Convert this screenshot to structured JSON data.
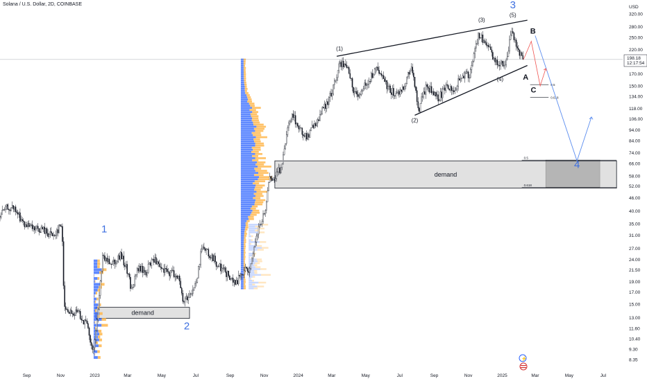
{
  "header": {
    "title": "Solana / U.S. Dollar, 2D, COINBASE",
    "currency": "USD"
  },
  "price_tag": {
    "price": "198.18",
    "countdown": "12:17:54"
  },
  "chart_data": {
    "type": "candlestick",
    "title": "Solana / U.S. Dollar, 2D, COINBASE",
    "y_scale": "log",
    "ylim": [
      7.6,
      345
    ],
    "y_ticks": [
      8.35,
      9.3,
      10.4,
      11.6,
      13.0,
      15.0,
      17.0,
      19.0,
      21.5,
      24.0,
      27.0,
      31.0,
      35.0,
      40.0,
      46.0,
      52.0,
      58.0,
      66.0,
      74.0,
      84.0,
      94.0,
      106.0,
      118.0,
      134.0,
      150.0,
      170.0,
      190.0,
      220.0,
      250.0,
      280.0,
      320.0
    ],
    "y_tick_labels": [
      "8.35",
      "9.30",
      "10.40",
      "11.60",
      "13.00",
      "15.00",
      "17.00",
      "19.00",
      "21.50",
      "24.00",
      "27.00",
      "31.00",
      "35.00",
      "40.00",
      "46.00",
      "52.00",
      "58.00",
      "66.00",
      "74.00",
      "84.00",
      "94.00",
      "106.00",
      "118.00",
      "134.00",
      "150.00",
      "170.00",
      "190.00",
      "220.00",
      "250.00",
      "280.00",
      "320.00"
    ],
    "x_labels": [
      {
        "label": "Sep",
        "date": "2022-09-01"
      },
      {
        "label": "Nov",
        "date": "2022-11-01"
      },
      {
        "label": "2023",
        "date": "2023-01-01",
        "bold": true
      },
      {
        "label": "Mar",
        "date": "2023-03-01"
      },
      {
        "label": "May",
        "date": "2023-05-01"
      },
      {
        "label": "Jul",
        "date": "2023-07-01"
      },
      {
        "label": "Sep",
        "date": "2023-09-01"
      },
      {
        "label": "Nov",
        "date": "2023-11-01"
      },
      {
        "label": "2024",
        "date": "2024-01-01",
        "bold": true
      },
      {
        "label": "Mar",
        "date": "2024-03-01"
      },
      {
        "label": "May",
        "date": "2024-05-01"
      },
      {
        "label": "Jul",
        "date": "2024-07-01"
      },
      {
        "label": "Sep",
        "date": "2024-09-01"
      },
      {
        "label": "Nov",
        "date": "2024-11-01"
      },
      {
        "label": "2025",
        "date": "2025-01-01",
        "bold": true
      },
      {
        "label": "Mar",
        "date": "2025-03-01"
      },
      {
        "label": "May",
        "date": "2025-05-01"
      },
      {
        "label": "Jul",
        "date": "2025-07-01"
      }
    ],
    "xlim": [
      "2022-07-15",
      "2025-08-05"
    ],
    "last_price": 198.18,
    "price_path": [
      [
        "2022-07-15",
        38
      ],
      [
        "2022-08-01",
        42
      ],
      [
        "2022-08-15",
        40
      ],
      [
        "2022-09-01",
        34
      ],
      [
        "2022-09-15",
        33
      ],
      [
        "2022-10-01",
        33
      ],
      [
        "2022-10-20",
        31
      ],
      [
        "2022-11-05",
        35
      ],
      [
        "2022-11-09",
        15
      ],
      [
        "2022-11-20",
        13.5
      ],
      [
        "2022-12-05",
        13.8
      ],
      [
        "2022-12-20",
        12
      ],
      [
        "2022-12-30",
        9.0
      ],
      [
        "2023-01-05",
        11
      ],
      [
        "2023-01-12",
        17
      ],
      [
        "2023-01-16",
        24
      ],
      [
        "2023-01-25",
        24
      ],
      [
        "2023-02-05",
        23.5
      ],
      [
        "2023-02-18",
        25
      ],
      [
        "2023-03-01",
        22
      ],
      [
        "2023-03-10",
        17.5
      ],
      [
        "2023-03-22",
        22
      ],
      [
        "2023-04-05",
        21
      ],
      [
        "2023-04-18",
        24.5
      ],
      [
        "2023-05-01",
        21.5
      ],
      [
        "2023-05-18",
        21
      ],
      [
        "2023-06-01",
        20.5
      ],
      [
        "2023-06-10",
        15.5
      ],
      [
        "2023-06-25",
        17
      ],
      [
        "2023-07-05",
        19
      ],
      [
        "2023-07-14",
        28
      ],
      [
        "2023-07-28",
        25
      ],
      [
        "2023-08-15",
        22.5
      ],
      [
        "2023-09-01",
        20
      ],
      [
        "2023-09-12",
        18.5
      ],
      [
        "2023-09-25",
        21
      ],
      [
        "2023-10-10",
        22
      ],
      [
        "2023-10-22",
        32
      ],
      [
        "2023-11-05",
        40
      ],
      [
        "2023-11-12",
        55
      ],
      [
        "2023-11-25",
        58
      ],
      [
        "2023-12-05",
        65
      ],
      [
        "2023-12-15",
        95
      ],
      [
        "2023-12-25",
        110
      ],
      [
        "2024-01-05",
        95
      ],
      [
        "2024-01-20",
        88
      ],
      [
        "2024-02-01",
        100
      ],
      [
        "2024-02-15",
        115
      ],
      [
        "2024-03-01",
        135
      ],
      [
        "2024-03-18",
        190
      ],
      [
        "2024-04-01",
        180
      ],
      [
        "2024-04-13",
        135
      ],
      [
        "2024-04-25",
        145
      ],
      [
        "2024-05-05",
        150
      ],
      [
        "2024-05-20",
        180
      ],
      [
        "2024-06-01",
        165
      ],
      [
        "2024-06-15",
        145
      ],
      [
        "2024-06-25",
        135
      ],
      [
        "2024-07-10",
        150
      ],
      [
        "2024-07-25",
        185
      ],
      [
        "2024-08-05",
        115
      ],
      [
        "2024-08-20",
        150
      ],
      [
        "2024-09-01",
        140
      ],
      [
        "2024-09-10",
        130
      ],
      [
        "2024-09-25",
        150
      ],
      [
        "2024-10-10",
        145
      ],
      [
        "2024-10-25",
        170
      ],
      [
        "2024-11-05",
        165
      ],
      [
        "2024-11-15",
        230
      ],
      [
        "2024-11-22",
        255
      ],
      [
        "2024-12-05",
        235
      ],
      [
        "2024-12-18",
        200
      ],
      [
        "2024-12-30",
        190
      ],
      [
        "2025-01-10",
        190
      ],
      [
        "2025-01-19",
        270
      ],
      [
        "2025-01-28",
        235
      ],
      [
        "2025-02-03",
        210
      ],
      [
        "2025-02-08",
        198.18
      ]
    ],
    "volume_profiles": [
      {
        "range": "2022-11 to 2023-01",
        "price_low": 8.4,
        "price_high": 24
      },
      {
        "range": "2023-09 to 2023-10",
        "price_low": 17.5,
        "price_high": 200
      },
      {
        "range": "2023-10 to 2023-11",
        "price_low": 17.5,
        "price_high": 35
      }
    ],
    "annotations": {
      "demand_zones": [
        {
          "label": "demand",
          "from": "2023-01-03",
          "to": "2023-06-20",
          "low": 12.9,
          "high": 14.5
        },
        {
          "label": "demand",
          "from": "2023-11-20",
          "to": "2025-07-25",
          "low": 51,
          "high": 68
        }
      ],
      "fib_levels": [
        {
          "label": "0.5",
          "value": 68.5
        },
        {
          "label": "0.618",
          "value": 51.3
        },
        {
          "label": "0.5",
          "value": 152
        },
        {
          "label": "0.618",
          "value": 133
        }
      ],
      "projection_box": {
        "from": "2025-03-20",
        "to": "2025-06-25",
        "low": 51.5,
        "high": 68.5
      },
      "wave_labels_blue": [
        {
          "label": "1",
          "date": "2023-01-18",
          "price": 32
        },
        {
          "label": "2",
          "date": "2023-06-15",
          "price": 11.5
        },
        {
          "label": "3",
          "date": "2025-01-20",
          "price": 340
        },
        {
          "label": "4",
          "date": "2025-05-15",
          "price": 63
        }
      ],
      "wave_labels_black": [
        {
          "label": "(1)",
          "date": "2024-03-15",
          "price": 218
        },
        {
          "label": "(2)",
          "date": "2024-07-28",
          "price": 102
        },
        {
          "label": "(3)",
          "date": "2024-11-25",
          "price": 295
        },
        {
          "label": "(4)",
          "date": "2024-12-28",
          "price": 158
        },
        {
          "label": "(5)",
          "date": "2025-01-20",
          "price": 310
        },
        {
          "label": "A",
          "date": "2025-02-12",
          "price": 160
        },
        {
          "label": "B",
          "date": "2025-02-25",
          "price": 260
        },
        {
          "label": "C",
          "date": "2025-02-26",
          "price": 140
        }
      ],
      "trendlines": [
        {
          "from": [
            "2024-03-10",
            205
          ],
          "to": [
            "2025-02-15",
            300
          ]
        },
        {
          "from": [
            "2024-07-28",
            110
          ],
          "to": [
            "2025-02-15",
            186
          ]
        }
      ],
      "red_path": [
        [
          "2025-02-08",
          198
        ],
        [
          "2025-02-22",
          240
        ],
        [
          "2025-03-10",
          150
        ],
        [
          "2025-03-20",
          180
        ]
      ],
      "blue_path": [
        [
          "2025-03-01",
          255
        ],
        [
          "2025-05-15",
          68
        ],
        [
          "2025-06-10",
          108
        ]
      ]
    }
  }
}
